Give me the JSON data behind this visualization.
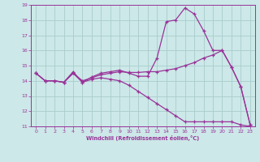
{
  "xlabel": "Windchill (Refroidissement éolien,°C)",
  "x_values": [
    0,
    1,
    2,
    3,
    4,
    5,
    6,
    7,
    8,
    9,
    10,
    11,
    12,
    13,
    14,
    15,
    16,
    17,
    18,
    19,
    20,
    21,
    22,
    23
  ],
  "line1": [
    14.5,
    14.0,
    14.0,
    13.9,
    14.6,
    13.9,
    14.25,
    14.5,
    14.6,
    14.7,
    14.5,
    14.3,
    14.3,
    15.5,
    17.9,
    18.0,
    18.8,
    18.4,
    17.3,
    16.0,
    16.0,
    14.9,
    13.6,
    11.1
  ],
  "line2": [
    14.5,
    14.0,
    14.0,
    13.9,
    14.5,
    14.0,
    14.2,
    14.4,
    14.5,
    14.6,
    14.55,
    14.55,
    14.6,
    14.6,
    14.7,
    14.8,
    15.0,
    15.2,
    15.5,
    15.7,
    16.0,
    14.9,
    13.6,
    11.1
  ],
  "line3": [
    14.5,
    14.0,
    14.0,
    13.9,
    14.5,
    13.9,
    14.1,
    14.2,
    14.1,
    14.0,
    13.7,
    13.3,
    12.9,
    12.5,
    12.1,
    11.7,
    11.3,
    11.3,
    11.3,
    11.3,
    11.3,
    11.3,
    11.1,
    11.0
  ],
  "line_color": "#993399",
  "bg_color": "#cce8e8",
  "grid_color": "#aacccc",
  "ylim": [
    11,
    19
  ],
  "xlim": [
    0,
    23
  ],
  "yticks": [
    11,
    12,
    13,
    14,
    15,
    16,
    17,
    18,
    19
  ],
  "xticks": [
    0,
    1,
    2,
    3,
    4,
    5,
    6,
    7,
    8,
    9,
    10,
    11,
    12,
    13,
    14,
    15,
    16,
    17,
    18,
    19,
    20,
    21,
    22,
    23
  ]
}
